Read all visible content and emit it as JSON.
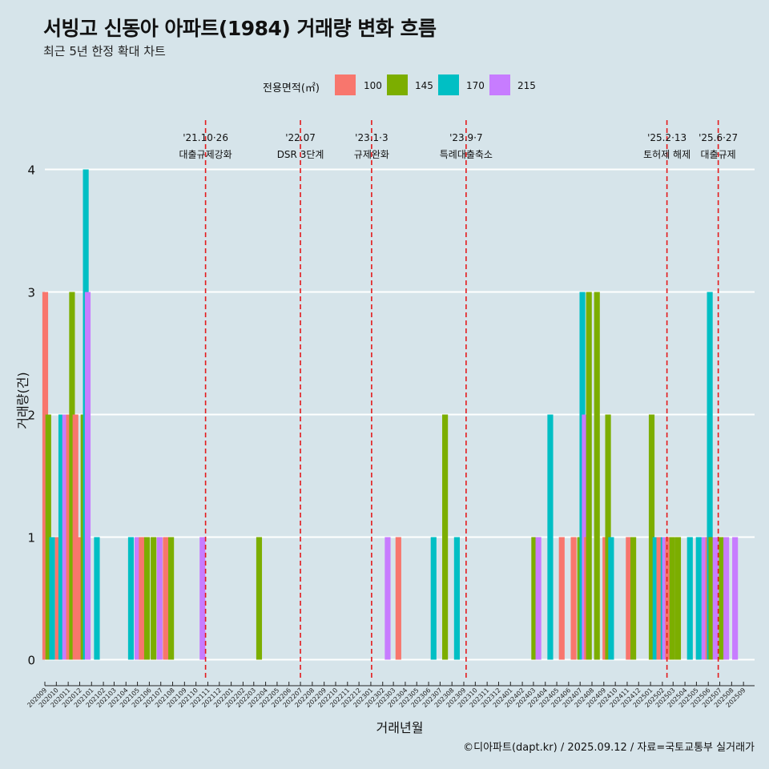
{
  "header": {
    "title": "서빙고 신동아 아파트(1984) 거래량 변화 흐름",
    "subtitle": "최근 5년 한정 확대 차트"
  },
  "legend": {
    "title": "전용면적(㎡)",
    "items": [
      {
        "label": "100",
        "color": "#f8766d"
      },
      {
        "label": "145",
        "color": "#7cae00"
      },
      {
        "label": "170",
        "color": "#00bfc4"
      },
      {
        "label": "215",
        "color": "#c77cff"
      }
    ]
  },
  "caption": "©디아파트(dapt.kr) / 2025.09.12 / 자료=국토교통부 실거래가",
  "chart_data": {
    "type": "bar",
    "xlabel": "거래년월",
    "ylabel": "거래량(건)",
    "ylim": [
      0,
      4
    ],
    "yticks": [
      0,
      1,
      2,
      3,
      4
    ],
    "grid": "horizontal major lines",
    "legend_position": "top",
    "x_axis_kind": "date",
    "categories": [
      "202009",
      "202010",
      "202011",
      "202012",
      "202101",
      "202102",
      "202103",
      "202104",
      "202105",
      "202106",
      "202107",
      "202108",
      "202109",
      "202110",
      "202111",
      "202112",
      "202201",
      "202202",
      "202203",
      "202204",
      "202205",
      "202206",
      "202207",
      "202208",
      "202209",
      "202210",
      "202211",
      "202212",
      "202301",
      "202302",
      "202303",
      "202304",
      "202305",
      "202306",
      "202307",
      "202308",
      "202309",
      "202310",
      "202311",
      "202312",
      "202401",
      "202402",
      "202403",
      "202404",
      "202405",
      "202406",
      "202407",
      "202408",
      "202409",
      "202410",
      "202411",
      "202412",
      "202501",
      "202502",
      "202503",
      "202504",
      "202505",
      "202506",
      "202507",
      "202508",
      "202509"
    ],
    "transactions": [
      {
        "date": "2020-09-02",
        "area": "100",
        "count": 3
      },
      {
        "date": "2020-09-10",
        "area": "145",
        "count": 2
      },
      {
        "date": "2020-09-20",
        "area": "170",
        "count": 1
      },
      {
        "date": "2020-10-05",
        "area": "100",
        "count": 1
      },
      {
        "date": "2020-10-14",
        "area": "170",
        "count": 2
      },
      {
        "date": "2020-10-24",
        "area": "215",
        "count": 2
      },
      {
        "date": "2020-11-03",
        "area": "100",
        "count": 2
      },
      {
        "date": "2020-11-11",
        "area": "145",
        "count": 3
      },
      {
        "date": "2020-11-20",
        "area": "100",
        "count": 2
      },
      {
        "date": "2020-12-04",
        "area": "100",
        "count": 1
      },
      {
        "date": "2020-12-11",
        "area": "145",
        "count": 2
      },
      {
        "date": "2020-12-17",
        "area": "170",
        "count": 4
      },
      {
        "date": "2020-12-22",
        "area": "215",
        "count": 3
      },
      {
        "date": "2021-01-15",
        "area": "170",
        "count": 1
      },
      {
        "date": "2021-04-14",
        "area": "170",
        "count": 1
      },
      {
        "date": "2021-05-01",
        "area": "215",
        "count": 1
      },
      {
        "date": "2021-05-12",
        "area": "100",
        "count": 1
      },
      {
        "date": "2021-05-26",
        "area": "145",
        "count": 1
      },
      {
        "date": "2021-06-12",
        "area": "145",
        "count": 1
      },
      {
        "date": "2021-06-28",
        "area": "215",
        "count": 1
      },
      {
        "date": "2021-07-14",
        "area": "100",
        "count": 1
      },
      {
        "date": "2021-07-28",
        "area": "145",
        "count": 1
      },
      {
        "date": "2021-10-18",
        "area": "215",
        "count": 1
      },
      {
        "date": "2022-03-15",
        "area": "145",
        "count": 1
      },
      {
        "date": "2023-02-14",
        "area": "215",
        "count": 1
      },
      {
        "date": "2023-03-14",
        "area": "100",
        "count": 1
      },
      {
        "date": "2023-06-14",
        "area": "170",
        "count": 1
      },
      {
        "date": "2023-07-14",
        "area": "145",
        "count": 2
      },
      {
        "date": "2023-08-14",
        "area": "170",
        "count": 1
      },
      {
        "date": "2024-03-03",
        "area": "145",
        "count": 1
      },
      {
        "date": "2024-03-14",
        "area": "215",
        "count": 1
      },
      {
        "date": "2024-04-14",
        "area": "170",
        "count": 2
      },
      {
        "date": "2024-05-14",
        "area": "100",
        "count": 1
      },
      {
        "date": "2024-06-14",
        "area": "100",
        "count": 1
      },
      {
        "date": "2024-07-01",
        "area": "145",
        "count": 1
      },
      {
        "date": "2024-07-07",
        "area": "170",
        "count": 3
      },
      {
        "date": "2024-07-13",
        "area": "215",
        "count": 2
      },
      {
        "date": "2024-07-19",
        "area": "100",
        "count": 1
      },
      {
        "date": "2024-07-24",
        "area": "145",
        "count": 3
      },
      {
        "date": "2024-08-14",
        "area": "145",
        "count": 3
      },
      {
        "date": "2024-09-05",
        "area": "100",
        "count": 1
      },
      {
        "date": "2024-09-12",
        "area": "145",
        "count": 2
      },
      {
        "date": "2024-09-20",
        "area": "170",
        "count": 1
      },
      {
        "date": "2024-11-05",
        "area": "100",
        "count": 1
      },
      {
        "date": "2024-11-17",
        "area": "145",
        "count": 1
      },
      {
        "date": "2025-01-04",
        "area": "145",
        "count": 2
      },
      {
        "date": "2025-01-14",
        "area": "170",
        "count": 1
      },
      {
        "date": "2025-01-24",
        "area": "100",
        "count": 1
      },
      {
        "date": "2025-02-04",
        "area": "170",
        "count": 1
      },
      {
        "date": "2025-02-08",
        "area": "215",
        "count": 1
      },
      {
        "date": "2025-02-16",
        "area": "100",
        "count": 1
      },
      {
        "date": "2025-02-27",
        "area": "145",
        "count": 1
      },
      {
        "date": "2025-03-14",
        "area": "145",
        "count": 1
      },
      {
        "date": "2025-04-14",
        "area": "170",
        "count": 1
      },
      {
        "date": "2025-05-07",
        "area": "170",
        "count": 1
      },
      {
        "date": "2025-05-22",
        "area": "215",
        "count": 1
      },
      {
        "date": "2025-06-01",
        "area": "100",
        "count": 1
      },
      {
        "date": "2025-06-05",
        "area": "170",
        "count": 3
      },
      {
        "date": "2025-06-09",
        "area": "145",
        "count": 1
      },
      {
        "date": "2025-06-20",
        "area": "215",
        "count": 1
      },
      {
        "date": "2025-07-06",
        "area": "145",
        "count": 1
      },
      {
        "date": "2025-07-18",
        "area": "215",
        "count": 1
      },
      {
        "date": "2025-08-10",
        "area": "215",
        "count": 1
      }
    ],
    "events": [
      {
        "date": "2021-10-26",
        "label_line1": "'21.10·26",
        "label_line2": "대출규제강화"
      },
      {
        "date": "2022-07-01",
        "label_line1": "'22.07",
        "label_line2": "DSR 3단계"
      },
      {
        "date": "2023-01-03",
        "label_line1": "'23.1·3",
        "label_line2": "규제완화"
      },
      {
        "date": "2023-09-07",
        "label_line1": "'23.9·7",
        "label_line2": "특례대출축소"
      },
      {
        "date": "2025-02-13",
        "label_line1": "'25.2·13",
        "label_line2": "토허제 해제"
      },
      {
        "date": "2025-06-27",
        "label_line1": "'25.6·27",
        "label_line2": "대출규제"
      }
    ]
  }
}
